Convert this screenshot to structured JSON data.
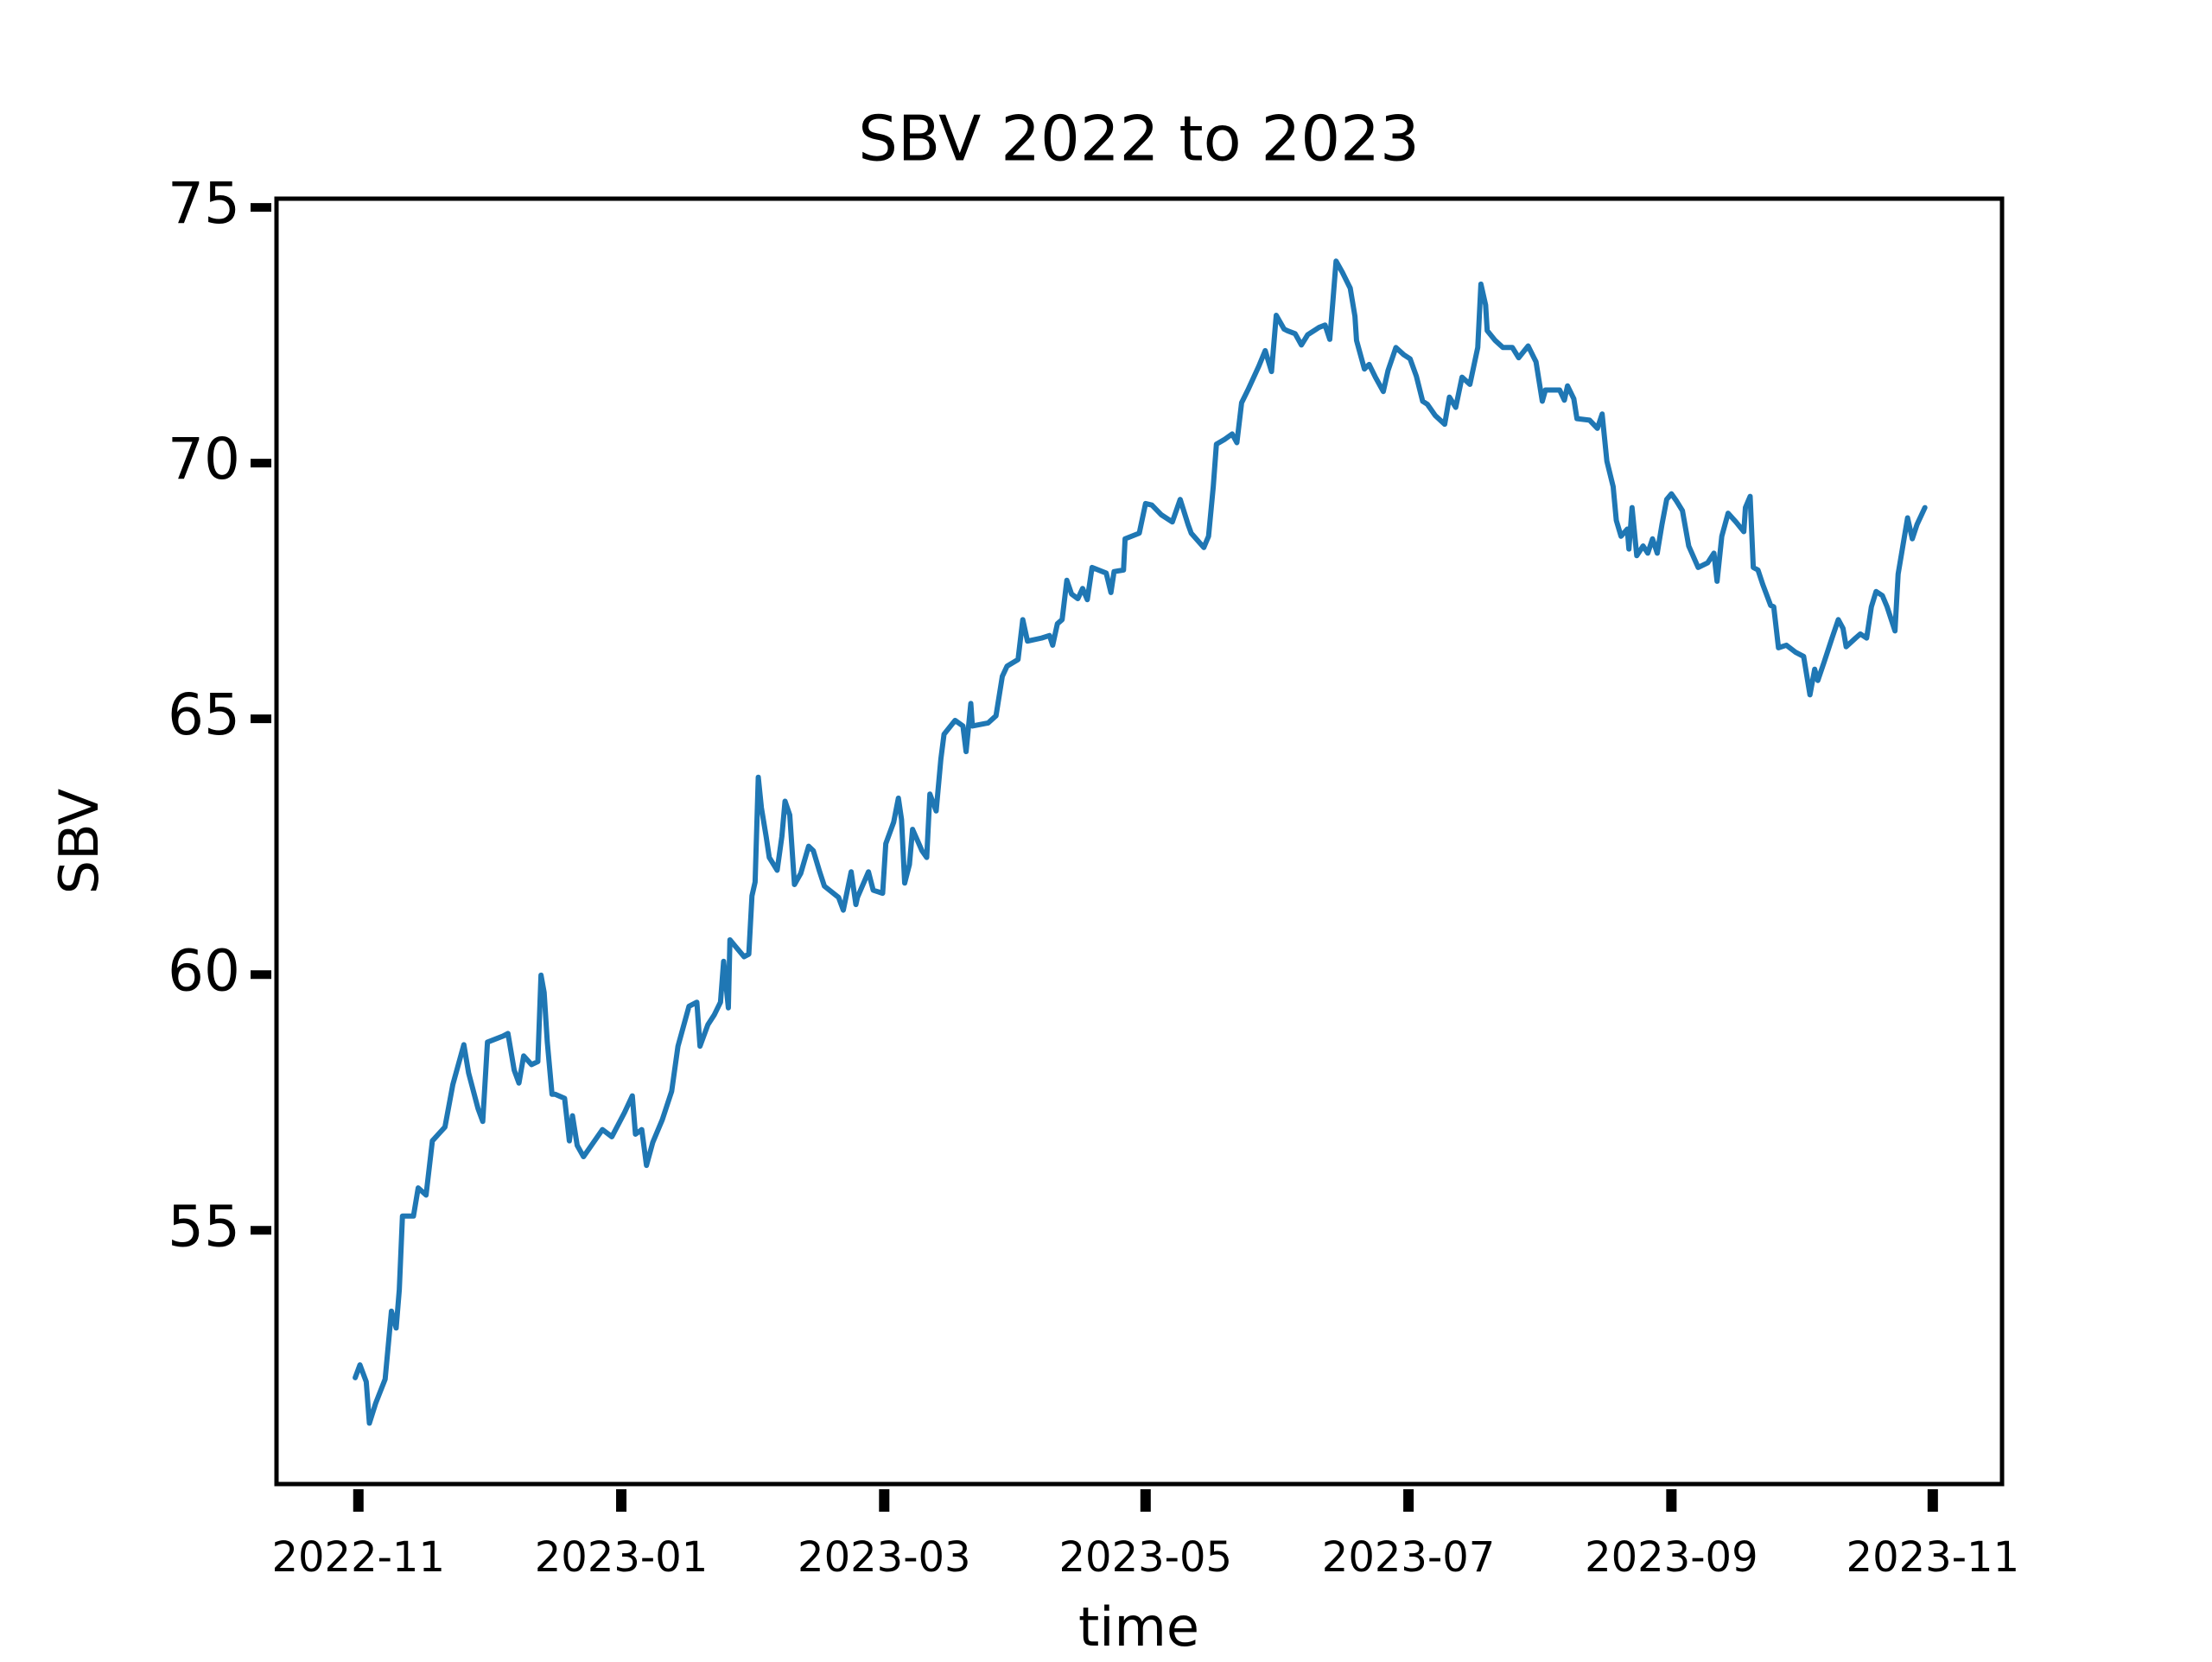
{
  "chart_data": {
    "type": "line",
    "title": "SBV 2022 to 2023",
    "x_label": "time",
    "y_label": "SBV",
    "color": "#1f77b4",
    "xlim": [
      2022.781,
      2023.877
    ],
    "ylim": [
      50.04,
      75.17
    ],
    "xticks": [
      {
        "value": 2022.833,
        "label": "2022-11"
      },
      {
        "value": 2023.0,
        "label": "2023-01"
      },
      {
        "value": 2023.167,
        "label": "2023-03"
      },
      {
        "value": 2023.333,
        "label": "2023-05"
      },
      {
        "value": 2023.5,
        "label": "2023-07"
      },
      {
        "value": 2023.667,
        "label": "2023-09"
      },
      {
        "value": 2023.833,
        "label": "2023-11"
      }
    ],
    "yticks": [
      55,
      60,
      65,
      70,
      75
    ],
    "x": [
      2022.831,
      2022.834,
      2022.838,
      2022.84,
      2022.844,
      2022.85,
      2022.854,
      2022.857,
      2022.859,
      2022.861,
      2022.868,
      2022.871,
      2022.876,
      2022.88,
      2022.888,
      2022.893,
      2022.9,
      2022.903,
      2022.909,
      2022.912,
      2022.915,
      2022.925,
      2022.928,
      2022.932,
      2022.935,
      2022.938,
      2022.943,
      2022.947,
      2022.949,
      2022.951,
      2022.953,
      2022.956,
      2022.958,
      2022.964,
      2022.967,
      2022.969,
      2022.972,
      2022.976,
      2022.988,
      2022.994,
      2023.002,
      2023.007,
      2023.009,
      2023.013,
      2023.016,
      2023.02,
      2023.026,
      2023.032,
      2023.036,
      2023.043,
      2023.048,
      2023.05,
      2023.055,
      2023.059,
      2023.063,
      2023.065,
      2023.068,
      2023.069,
      2023.072,
      2023.078,
      2023.081,
      2023.083,
      2023.085,
      2023.087,
      2023.089,
      2023.092,
      2023.094,
      2023.099,
      2023.102,
      2023.104,
      2023.107,
      2023.11,
      2023.114,
      2023.119,
      2023.122,
      2023.126,
      2023.129,
      2023.138,
      2023.141,
      2023.146,
      2023.149,
      2023.15,
      2023.157,
      2023.16,
      2023.166,
      2023.168,
      2023.173,
      2023.176,
      2023.178,
      2023.18,
      2023.183,
      2023.185,
      2023.191,
      2023.194,
      2023.196,
      2023.2,
      2023.203,
      2023.205,
      2023.212,
      2023.217,
      2023.219,
      2023.222,
      2023.223,
      2023.233,
      2023.238,
      2023.242,
      2023.245,
      2023.252,
      2023.255,
      2023.258,
      2023.267,
      2023.272,
      2023.274,
      2023.277,
      2023.28,
      2023.283,
      2023.286,
      2023.29,
      2023.293,
      2023.296,
      2023.299,
      2023.308,
      2023.311,
      2023.313,
      2023.319,
      2023.32,
      2023.329,
      2023.333,
      2023.337,
      2023.343,
      2023.35,
      2023.355,
      2023.36,
      2023.362,
      2023.37,
      2023.373,
      2023.376,
      2023.378,
      2023.383,
      2023.388,
      2023.391,
      2023.394,
      2023.398,
      2023.405,
      2023.409,
      2023.413,
      2023.416,
      2023.421,
      2023.423,
      2023.428,
      2023.432,
      2023.436,
      2023.443,
      2023.447,
      2023.45,
      2023.452,
      2023.454,
      2023.458,
      2023.463,
      2023.466,
      2023.467,
      2023.472,
      2023.475,
      2023.479,
      2023.484,
      2023.487,
      2023.492,
      2023.497,
      2023.501,
      2023.505,
      2023.509,
      2023.512,
      2023.517,
      2023.523,
      2023.526,
      2023.53,
      2023.534,
      2023.539,
      2023.544,
      2023.546,
      2023.549,
      2023.55,
      2023.555,
      2023.56,
      2023.566,
      2023.57,
      2023.576,
      2023.581,
      2023.585,
      2023.587,
      2023.596,
      2023.599,
      2023.601,
      2023.605,
      2023.607,
      2023.615,
      2023.62,
      2023.623,
      2023.626,
      2023.63,
      2023.632,
      2023.635,
      2023.639,
      2023.64,
      2023.642,
      2023.645,
      2023.649,
      2023.652,
      2023.655,
      2023.658,
      2023.661,
      2023.664,
      2023.667,
      2023.67,
      2023.674,
      2023.678,
      2023.684,
      2023.69,
      2023.694,
      2023.696,
      2023.699,
      2023.703,
      2023.708,
      2023.713,
      2023.714,
      2023.717,
      2023.719,
      2023.722,
      2023.725,
      2023.73,
      2023.732,
      2023.735,
      2023.74,
      2023.746,
      2023.751,
      2023.755,
      2023.758,
      2023.76,
      2023.764,
      2023.769,
      2023.773,
      2023.776,
      2023.778,
      2023.784,
      2023.787,
      2023.791,
      2023.794,
      2023.797,
      2023.801,
      2023.804,
      2023.809,
      2023.811,
      2023.814,
      2023.817,
      2023.82,
      2023.823,
      2023.828
    ],
    "values": [
      52.12,
      52.37,
      52.04,
      51.23,
      51.62,
      52.09,
      53.42,
      53.09,
      53.84,
      55.28,
      55.28,
      55.83,
      55.69,
      56.75,
      57.02,
      57.85,
      58.63,
      58.08,
      57.38,
      57.13,
      58.68,
      58.8,
      58.85,
      58.13,
      57.88,
      58.41,
      58.24,
      58.3,
      59.99,
      59.65,
      58.68,
      57.66,
      57.66,
      57.58,
      56.75,
      57.24,
      56.66,
      56.44,
      56.97,
      56.83,
      57.3,
      57.63,
      56.88,
      56.97,
      56.27,
      56.72,
      57.16,
      57.72,
      58.6,
      59.38,
      59.46,
      58.6,
      59.02,
      59.21,
      59.46,
      60.26,
      59.35,
      60.68,
      60.57,
      60.35,
      60.4,
      61.54,
      61.81,
      63.86,
      63.26,
      62.7,
      62.29,
      62.04,
      62.7,
      63.39,
      63.12,
      61.76,
      61.98,
      62.51,
      62.42,
      62.01,
      61.73,
      61.51,
      61.26,
      62.01,
      61.37,
      61.51,
      62.01,
      61.65,
      61.59,
      62.56,
      62.98,
      63.45,
      63.03,
      61.79,
      62.15,
      62.84,
      62.42,
      62.29,
      63.53,
      63.2,
      64.22,
      64.7,
      64.97,
      64.86,
      64.36,
      65.3,
      64.86,
      64.92,
      65.06,
      65.83,
      66.03,
      66.16,
      66.94,
      66.52,
      66.58,
      66.63,
      66.44,
      66.86,
      66.94,
      67.71,
      67.44,
      67.35,
      67.55,
      67.33,
      67.96,
      67.85,
      67.47,
      67.88,
      67.91,
      68.52,
      68.63,
      69.21,
      69.18,
      68.99,
      68.85,
      69.29,
      68.8,
      68.63,
      68.35,
      68.57,
      69.54,
      70.37,
      70.46,
      70.57,
      70.4,
      71.18,
      71.43,
      71.9,
      72.2,
      71.79,
      72.89,
      72.62,
      72.59,
      72.53,
      72.31,
      72.51,
      72.65,
      72.7,
      72.42,
      73.17,
      73.95,
      73.73,
      73.42,
      72.87,
      72.4,
      71.84,
      71.93,
      71.68,
      71.4,
      71.81,
      72.26,
      72.12,
      72.04,
      71.7,
      71.21,
      71.15,
      70.93,
      70.76,
      71.29,
      71.09,
      71.68,
      71.54,
      72.26,
      73.5,
      73.09,
      72.59,
      72.4,
      72.26,
      72.26,
      72.06,
      72.29,
      71.98,
      71.21,
      71.43,
      71.43,
      71.23,
      71.51,
      71.26,
      70.87,
      70.84,
      70.68,
      70.96,
      70.04,
      69.54,
      68.88,
      68.57,
      68.71,
      68.32,
      69.13,
      68.19,
      68.38,
      68.24,
      68.52,
      68.24,
      68.8,
      69.29,
      69.4,
      69.27,
      69.07,
      68.38,
      67.96,
      68.05,
      68.24,
      67.69,
      68.57,
      69.02,
      68.85,
      68.66,
      69.13,
      69.35,
      67.96,
      67.91,
      67.63,
      67.22,
      67.19,
      66.39,
      66.44,
      66.3,
      66.22,
      65.47,
      65.97,
      65.75,
      66.11,
      66.58,
      66.94,
      66.77,
      66.41,
      66.58,
      66.66,
      66.58,
      67.19,
      67.49,
      67.41,
      67.19,
      66.72,
      67.83,
      68.38,
      68.93,
      68.52,
      68.8,
      69.13
    ]
  }
}
